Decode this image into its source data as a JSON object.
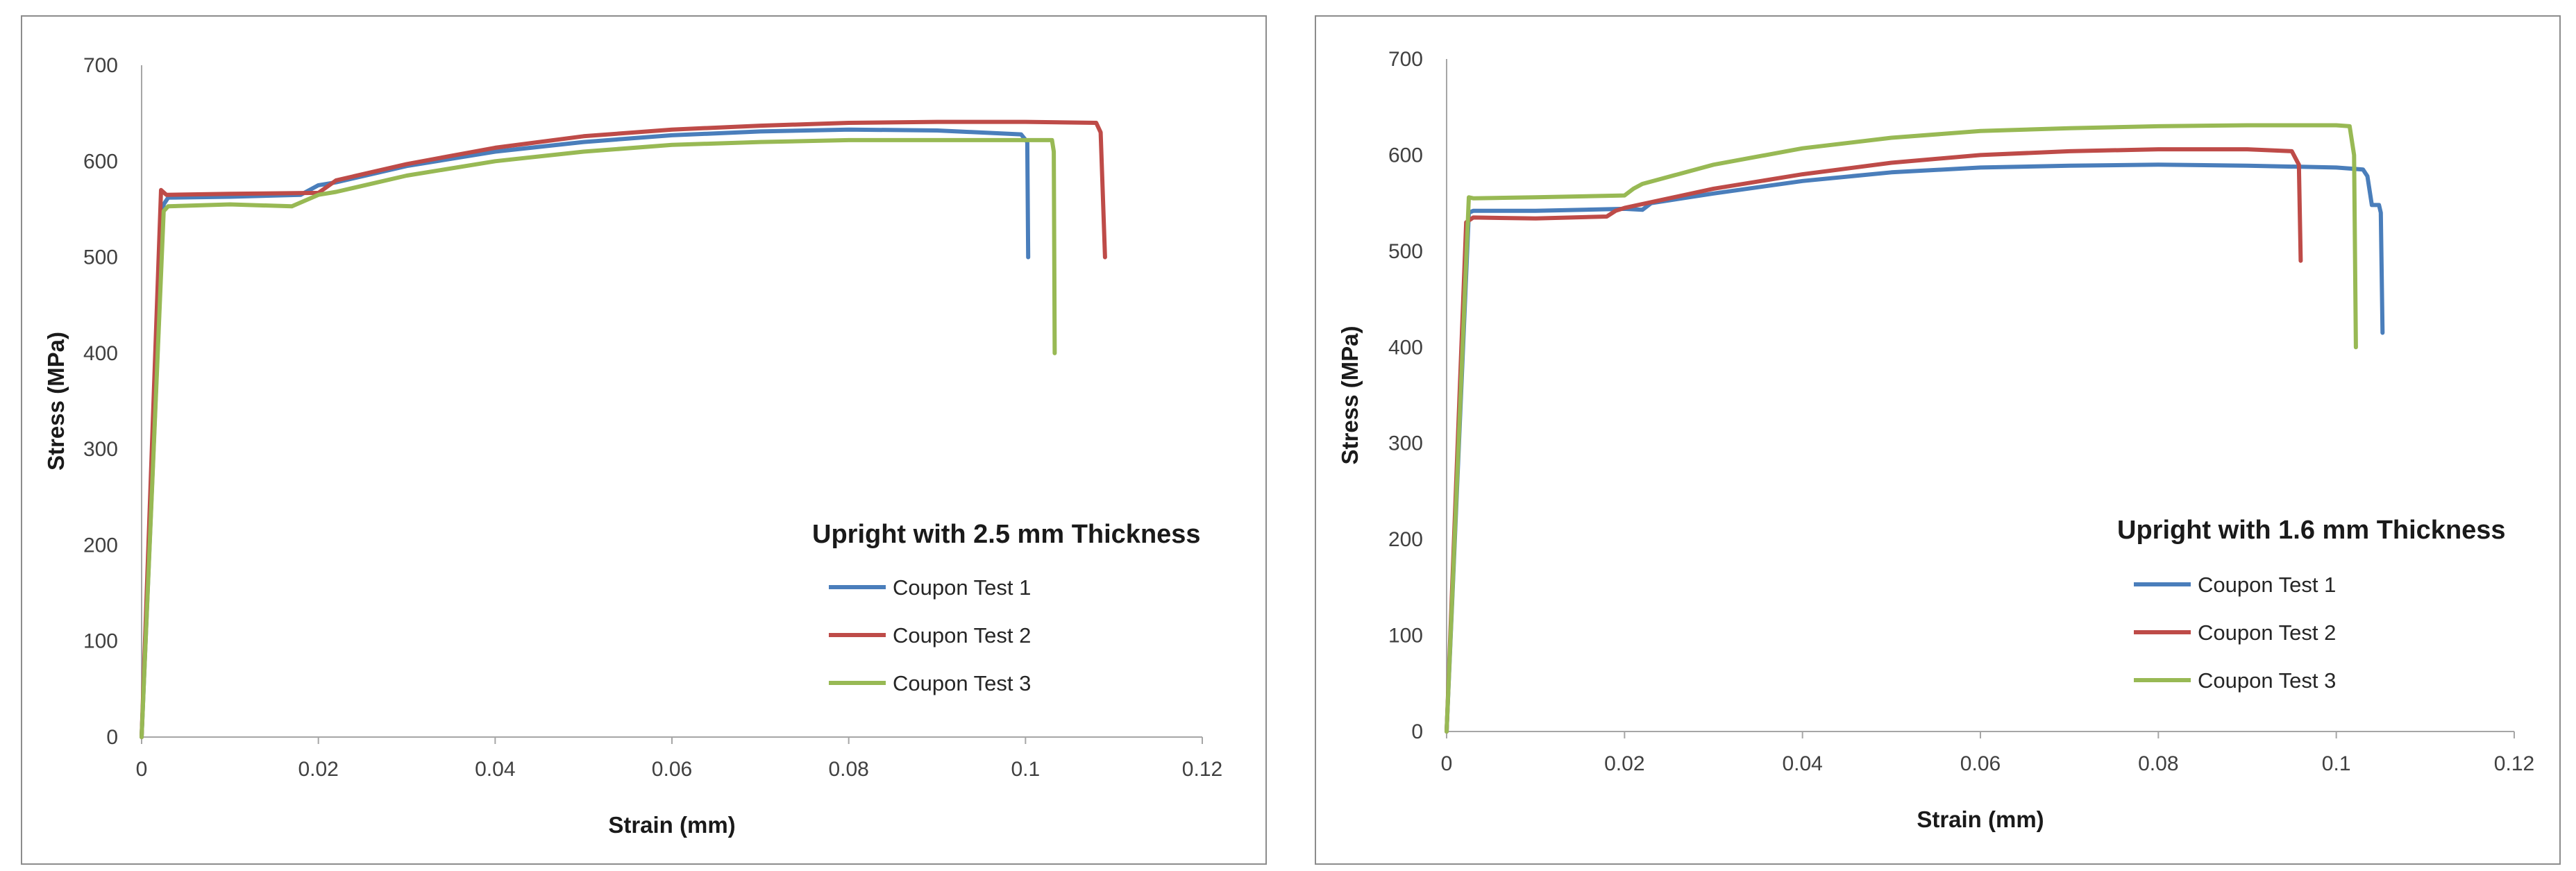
{
  "chart_data": [
    {
      "type": "line",
      "title": "Upright with 2.5 mm Thickness",
      "xlabel": "Strain (mm)",
      "ylabel": "Stress (MPa)",
      "xlim": [
        0,
        0.12
      ],
      "ylim": [
        0,
        700
      ],
      "xticks": [
        "0",
        "0.02",
        "0.04",
        "0.06",
        "0.08",
        "0.1",
        "0.12"
      ],
      "yticks": [
        "0",
        "100",
        "200",
        "300",
        "400",
        "500",
        "600",
        "700"
      ],
      "grid": false,
      "legend": "right",
      "series": [
        {
          "name": "Coupon Test 1",
          "color": "#4a7ebb",
          "x": [
            0,
            0.0025,
            0.003,
            0.01,
            0.018,
            0.02,
            0.022,
            0.03,
            0.04,
            0.05,
            0.06,
            0.07,
            0.08,
            0.09,
            0.0995,
            0.1002,
            0.1003
          ],
          "y": [
            0,
            555,
            562,
            563,
            565,
            575,
            578,
            595,
            610,
            620,
            627,
            631,
            633,
            632,
            628,
            620,
            500
          ]
        },
        {
          "name": "Coupon Test 2",
          "color": "#be4b48",
          "x": [
            0,
            0.0022,
            0.0028,
            0.01,
            0.02,
            0.022,
            0.03,
            0.04,
            0.05,
            0.06,
            0.07,
            0.08,
            0.09,
            0.1,
            0.108,
            0.1085,
            0.109
          ],
          "y": [
            0,
            570,
            565,
            566,
            567,
            580,
            597,
            614,
            626,
            633,
            637,
            640,
            641,
            641,
            640,
            630,
            500
          ]
        },
        {
          "name": "Coupon Test 3",
          "color": "#98b954",
          "x": [
            0,
            0.0025,
            0.003,
            0.01,
            0.017,
            0.018,
            0.02,
            0.022,
            0.03,
            0.04,
            0.05,
            0.06,
            0.07,
            0.08,
            0.09,
            0.1,
            0.103,
            0.1032,
            0.1033
          ],
          "y": [
            0,
            548,
            553,
            555,
            553,
            557,
            565,
            568,
            585,
            600,
            610,
            617,
            620,
            622,
            622,
            622,
            622,
            610,
            400
          ]
        }
      ]
    },
    {
      "type": "line",
      "title": "Upright with 1.6 mm Thickness",
      "xlabel": "Strain (mm)",
      "ylabel": "Stress (MPa)",
      "xlim": [
        0,
        0.12
      ],
      "ylim": [
        0,
        700
      ],
      "xticks": [
        "0",
        "0.02",
        "0.04",
        "0.06",
        "0.08",
        "0.1",
        "0.12"
      ],
      "yticks": [
        "0",
        "100",
        "200",
        "300",
        "400",
        "500",
        "600",
        "700"
      ],
      "grid": false,
      "legend": "right",
      "series": [
        {
          "name": "Coupon Test 1",
          "color": "#4a7ebb",
          "x": [
            0,
            0.0025,
            0.003,
            0.01,
            0.02,
            0.022,
            0.023,
            0.03,
            0.04,
            0.05,
            0.06,
            0.07,
            0.08,
            0.09,
            0.1,
            0.103,
            0.1035,
            0.104,
            0.1048,
            0.105,
            0.1052
          ],
          "y": [
            0,
            540,
            542,
            542,
            544,
            543,
            550,
            560,
            573,
            582,
            587,
            589,
            590,
            589,
            587,
            585,
            578,
            548,
            548,
            540,
            415
          ]
        },
        {
          "name": "Coupon Test 2",
          "color": "#be4b48",
          "x": [
            0,
            0.0022,
            0.003,
            0.01,
            0.018,
            0.019,
            0.02,
            0.03,
            0.04,
            0.05,
            0.06,
            0.07,
            0.08,
            0.09,
            0.095,
            0.0958,
            0.096
          ],
          "y": [
            0,
            530,
            535,
            534,
            536,
            542,
            545,
            565,
            580,
            592,
            600,
            604,
            606,
            606,
            604,
            590,
            490
          ]
        },
        {
          "name": "Coupon Test 3",
          "color": "#98b954",
          "x": [
            0,
            0.0025,
            0.003,
            0.01,
            0.02,
            0.021,
            0.022,
            0.03,
            0.04,
            0.05,
            0.06,
            0.07,
            0.08,
            0.09,
            0.1,
            0.1015,
            0.102,
            0.1022
          ],
          "y": [
            0,
            556,
            555,
            556,
            558,
            565,
            570,
            590,
            607,
            618,
            625,
            628,
            630,
            631,
            631,
            630,
            600,
            400
          ]
        }
      ]
    }
  ]
}
